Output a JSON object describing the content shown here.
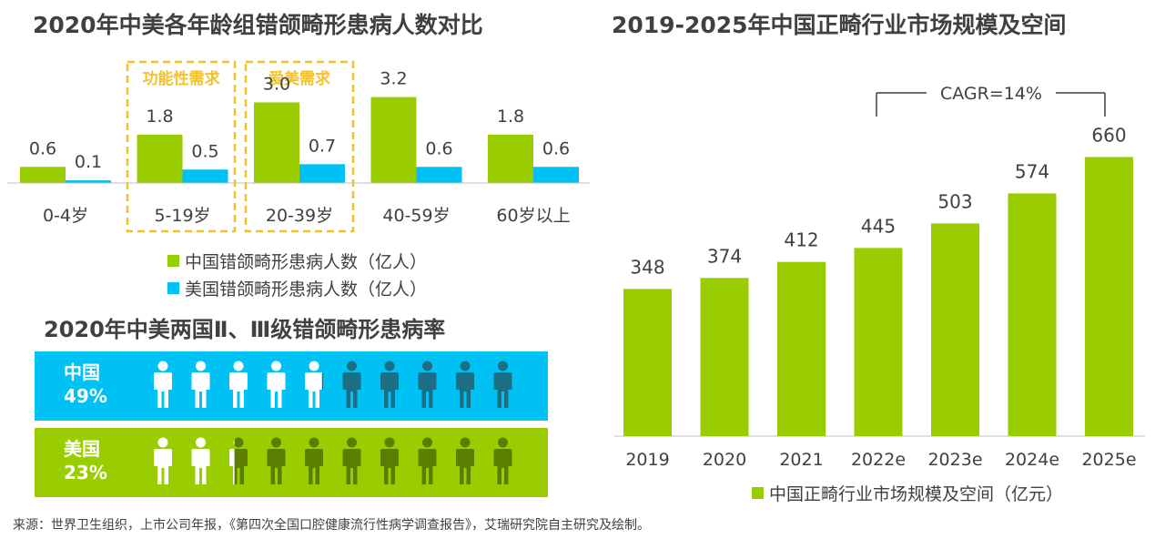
{
  "titles": {
    "age_chart": "2020年中美各年龄组错颌畸形患病人数对比",
    "market_chart": "2019-2025年中国正畸行业市场规模及空间",
    "rate_chart": "2020年中美两国Ⅱ、Ⅲ级错颌畸形患病率"
  },
  "colors": {
    "green": "#9ACD00",
    "blue": "#00C1F3",
    "gold": "#F2C12E",
    "dark_teal": "#1C6E84",
    "dark_green": "#5B7E00"
  },
  "chart_data": [
    {
      "type": "bar",
      "title": "2020年中美各年龄组错颌畸形患病人数对比",
      "categories": [
        "0-4岁",
        "5-19岁",
        "20-39岁",
        "40-59岁",
        "60岁以上"
      ],
      "series": [
        {
          "name": "中国错颌畸形患病人数（亿人）",
          "values": [
            0.6,
            1.8,
            3.0,
            3.2,
            1.8
          ],
          "labels": [
            "0.6",
            "1.8",
            "3.0",
            "3.2",
            "1.8"
          ]
        },
        {
          "name": "美国错颌畸形患病人数（亿人）",
          "values": [
            0.1,
            0.5,
            0.7,
            0.6,
            0.6
          ],
          "labels": [
            "0.1",
            "0.5",
            "0.7",
            "0.6",
            "0.6"
          ]
        }
      ],
      "annotations": [
        {
          "text": "功能性需求",
          "category": "5-19岁"
        },
        {
          "text": "爱美需求",
          "category": "20-39岁"
        }
      ]
    },
    {
      "type": "bar",
      "title": "2019-2025年中国正畸行业市场规模及空间",
      "categories": [
        "2019",
        "2020",
        "2021",
        "2022e",
        "2023e",
        "2024e",
        "2025e"
      ],
      "series": [
        {
          "name": "中国正畸行业市场规模及空间（亿元）",
          "values": [
            348,
            374,
            412,
            445,
            503,
            574,
            660
          ]
        }
      ],
      "annotations": [
        {
          "text": "CAGR=14%",
          "from": "2022e",
          "to": "2025e"
        }
      ]
    },
    {
      "type": "pictogram",
      "title": "2020年中美两国Ⅱ、Ⅲ级错颌畸形患病率",
      "icons_total": 10,
      "rows": [
        {
          "country": "中国",
          "rate_label": "49%",
          "rate": 49
        },
        {
          "country": "美国",
          "rate_label": "23%",
          "rate": 23
        }
      ]
    }
  ],
  "source": "来源：世界卫生组织，上市公司年报，《第四次全国口腔健康流行性病学调查报告》，艾瑞研究院自主研究及绘制。"
}
